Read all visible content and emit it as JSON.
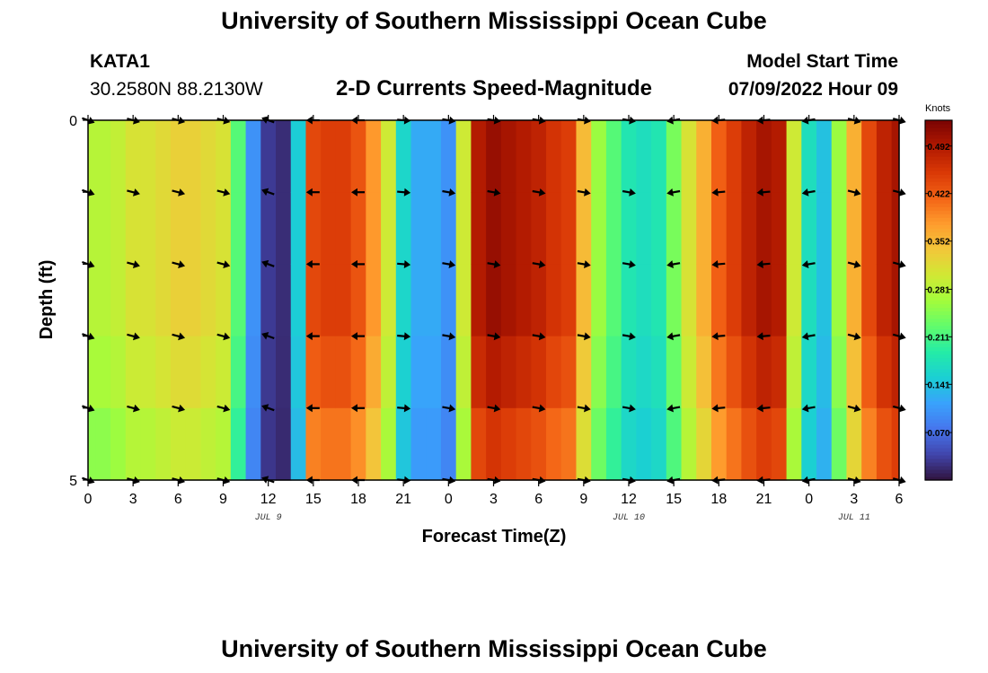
{
  "header": {
    "title": "University of Southern Mississippi Ocean Cube",
    "station": "KATA1",
    "coords": "30.2580N  88.2130W",
    "subtitle": "2-D Currents Speed-Magnitude",
    "model_start_label": "Model Start Time",
    "model_start_value": "07/09/2022 Hour 09",
    "footer_title": "University of Southern Mississippi Ocean Cube"
  },
  "chart_data": {
    "type": "heatmap",
    "title": "2-D Currents Speed-Magnitude",
    "xlabel": "Forecast Time(Z)",
    "ylabel": "Depth (ft)",
    "x_hours": [
      0,
      1,
      2,
      3,
      4,
      5,
      6,
      7,
      8,
      9,
      10,
      11,
      12,
      13,
      14,
      15,
      16,
      17,
      18,
      19,
      20,
      21,
      22,
      23,
      24,
      25,
      26,
      27,
      28,
      29,
      30,
      31,
      32,
      33,
      34,
      35,
      36,
      37,
      38,
      39,
      40,
      41,
      42,
      43,
      44,
      45,
      46,
      47,
      48,
      49,
      50,
      51,
      52,
      53,
      54
    ],
    "x_tick_labels": [
      "0",
      "3",
      "6",
      "9",
      "12",
      "15",
      "18",
      "21",
      "0",
      "3",
      "6",
      "9",
      "12",
      "15",
      "18",
      "21",
      "0",
      "3",
      "6"
    ],
    "date_labels": [
      {
        "label": "JUL 9",
        "at_tick": 4
      },
      {
        "label": "JUL 10",
        "at_tick": 12
      },
      {
        "label": "JUL 11",
        "at_tick": 17
      }
    ],
    "y_tick_labels": [
      "0",
      "5"
    ],
    "ylim": [
      0,
      5
    ],
    "speed_profile_knots": [
      0.28,
      0.28,
      0.29,
      0.31,
      0.31,
      0.32,
      0.33,
      0.33,
      0.32,
      0.31,
      0.22,
      0.1,
      0.03,
      0.02,
      0.15,
      0.44,
      0.45,
      0.45,
      0.43,
      0.38,
      0.3,
      0.16,
      0.12,
      0.12,
      0.1,
      0.3,
      0.49,
      0.51,
      0.5,
      0.49,
      0.48,
      0.46,
      0.45,
      0.35,
      0.26,
      0.22,
      0.18,
      0.17,
      0.18,
      0.24,
      0.31,
      0.36,
      0.42,
      0.45,
      0.48,
      0.5,
      0.49,
      0.3,
      0.17,
      0.14,
      0.26,
      0.36,
      0.44,
      0.48,
      0.5
    ],
    "depth_factors": [
      1.0,
      1.0,
      1.0,
      0.96,
      0.9
    ],
    "arrow_hours": [
      0,
      3,
      6,
      9,
      12,
      15,
      18,
      21,
      24,
      27,
      30,
      33,
      36,
      39,
      42,
      45,
      48,
      51,
      54
    ],
    "arrow_depth_rows": [
      0,
      1,
      2,
      3,
      4,
      5
    ],
    "arrow_directions_deg": [
      20,
      15,
      15,
      15,
      200,
      180,
      180,
      5,
      10,
      10,
      10,
      10,
      10,
      170,
      175,
      175,
      170,
      15,
      15
    ],
    "colorbar": {
      "unit": "Knots",
      "min": 0.0,
      "max": 0.53,
      "tick_values": [
        0.07,
        0.141,
        0.211,
        0.281,
        0.352,
        0.422,
        0.492
      ],
      "tick_labels": [
        "0.070",
        "0.141",
        "0.211",
        "0.281",
        "0.352",
        "0.422",
        "0.492"
      ],
      "colors": [
        "#30123b",
        "#4145ab",
        "#4675ed",
        "#39a2fc",
        "#1bcfd4",
        "#24eca6",
        "#61fc6c",
        "#a4fc3b",
        "#d1e834",
        "#f3c63a",
        "#fe9b2d",
        "#f36315",
        "#d93806",
        "#b11901",
        "#7a0403"
      ]
    }
  }
}
